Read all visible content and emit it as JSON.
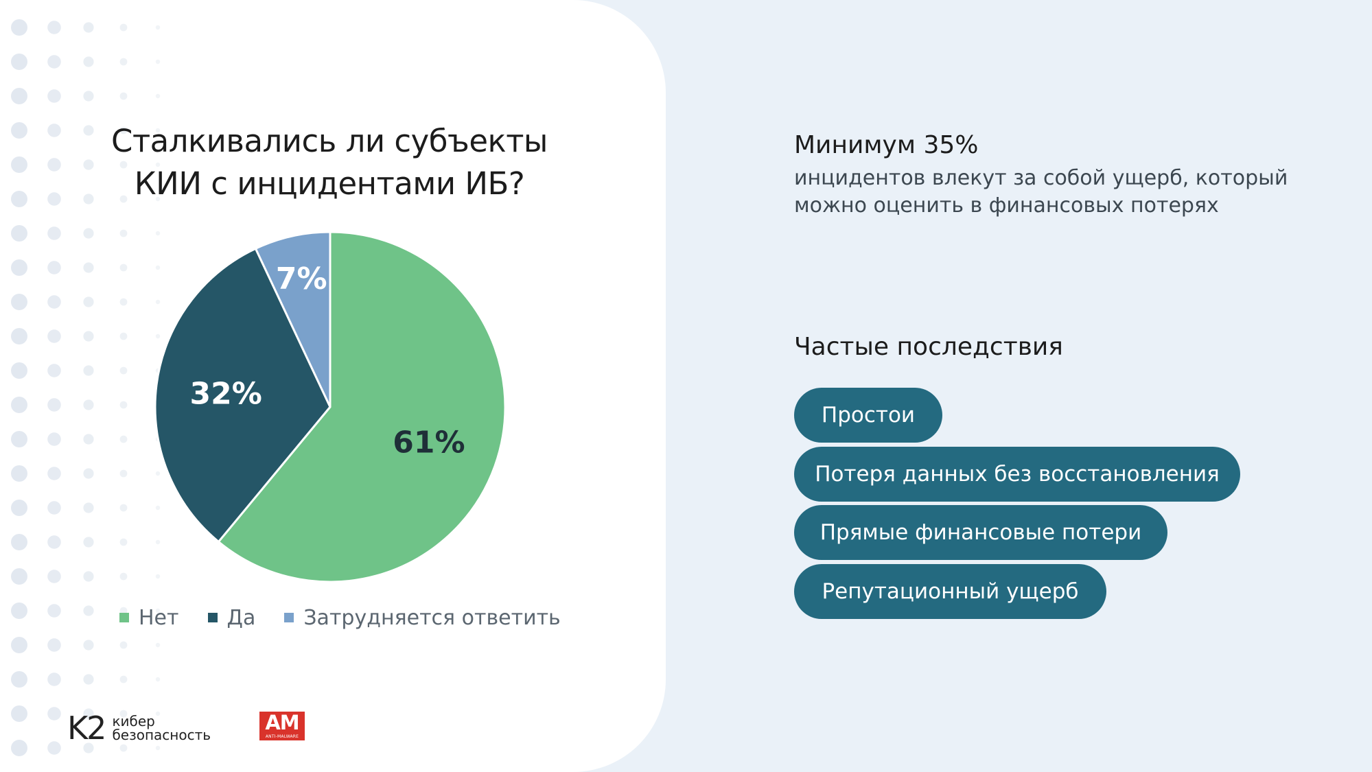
{
  "chart_data": {
    "type": "pie",
    "title": "Сталкивались ли субъекты КИИ с инцидентами ИБ?",
    "title_lines": [
      "Сталкивались ли субъекты",
      "КИИ с инцидентами ИБ?"
    ],
    "slices": [
      {
        "label": "Нет",
        "value": 61,
        "display": "61%",
        "color": "#6fc388",
        "label_color": "#1f2f38"
      },
      {
        "label": "Да",
        "value": 32,
        "display": "32%",
        "color": "#255667",
        "label_color": "#ffffff"
      },
      {
        "label": "Затрудняется ответить",
        "value": 7,
        "display": "7%",
        "color": "#7aa1cb",
        "label_color": "#ffffff"
      }
    ],
    "legend_position": "bottom"
  },
  "stat": {
    "heading": "Минимум 35%",
    "line1": "инцидентов влекут за собой ущерб, который",
    "line2": "можно оценить в финансовых потерях"
  },
  "consequences": {
    "title": "Частые последствия",
    "items": [
      "Простои",
      "Потеря данных без восстановления",
      "Прямые финансовые потери",
      "Репутационный ущерб"
    ],
    "pill_color": "#246a80"
  },
  "logos": {
    "k2_mark": "K2",
    "k2_line1": "кибер",
    "k2_line2": "безопасность",
    "am_mark": "AM",
    "am_sub": "ANTI-MALWARE"
  }
}
